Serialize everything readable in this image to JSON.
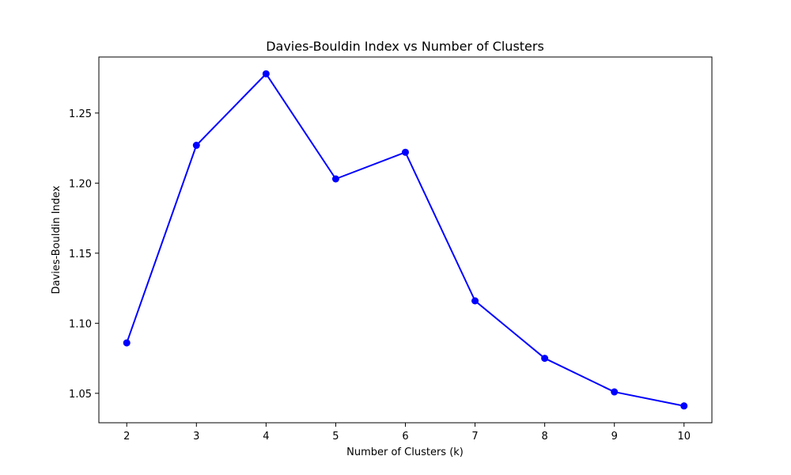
{
  "chart_data": {
    "type": "line",
    "title": "Davies-Bouldin Index vs Number of Clusters",
    "xlabel": "Number of Clusters (k)",
    "ylabel": "Davies-Bouldin Index",
    "x": [
      2,
      3,
      4,
      5,
      6,
      7,
      8,
      9,
      10
    ],
    "series": [
      {
        "values": [
          1.086,
          1.227,
          1.278,
          1.203,
          1.222,
          1.116,
          1.075,
          1.051,
          1.041
        ],
        "color": "#0000ff",
        "marker": "circle"
      }
    ],
    "xlim": [
      1.6,
      10.4
    ],
    "ylim": [
      1.029,
      1.29
    ],
    "xticks": [
      "2",
      "3",
      "4",
      "5",
      "6",
      "7",
      "8",
      "9",
      "10"
    ],
    "yticks": [
      "1.05",
      "1.10",
      "1.15",
      "1.20",
      "1.25"
    ],
    "grid": false,
    "legend": false
  }
}
